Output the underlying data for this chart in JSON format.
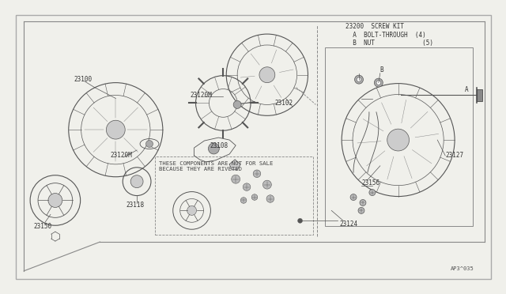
{
  "bg_color": "#f0f0eb",
  "line_color": "#555555",
  "fig_id": "AP3^035",
  "note_text": "THESE COMPONENTS ARE NOT FOR SALE\nBECAUSE THEY ARE RIVETED",
  "screw_kit_text": "23200  SCREW KIT\n  A  BOLT-THROUGH  (4)\n  B  NUT             (5)"
}
